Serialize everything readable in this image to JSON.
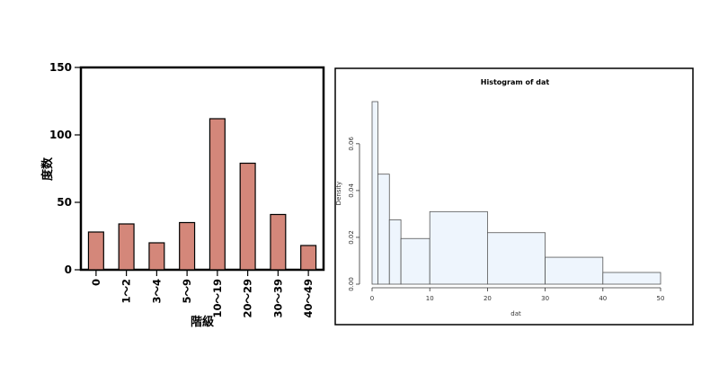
{
  "chart_data": [
    {
      "type": "bar",
      "title": "",
      "xlabel": "階級",
      "ylabel": "度数",
      "categories": [
        "0",
        "1〜2",
        "3〜4",
        "5〜9",
        "10〜19",
        "20〜29",
        "30〜39",
        "40〜49"
      ],
      "values": [
        28,
        34,
        20,
        35,
        112,
        79,
        41,
        18
      ],
      "ylim": [
        0,
        150
      ],
      "yticks": [
        "0",
        "50",
        "100",
        "150"
      ],
      "bar_color": "#d4877a",
      "grid": false,
      "legend": "none"
    },
    {
      "type": "bar",
      "subtype": "histogram",
      "title": "Histogram of dat",
      "xlabel": "dat",
      "ylabel": "Density",
      "bins": [
        {
          "from": 0,
          "to": 1,
          "density": 0.078
        },
        {
          "from": 1,
          "to": 3,
          "density": 0.047
        },
        {
          "from": 3,
          "to": 5,
          "density": 0.0275
        },
        {
          "from": 5,
          "to": 10,
          "density": 0.0195
        },
        {
          "from": 10,
          "to": 20,
          "density": 0.031
        },
        {
          "from": 20,
          "to": 30,
          "density": 0.022
        },
        {
          "from": 30,
          "to": 40,
          "density": 0.0115
        },
        {
          "from": 40,
          "to": 50,
          "density": 0.005
        }
      ],
      "xlim": [
        0,
        50
      ],
      "ylim": [
        0,
        0.078
      ],
      "xticks": [
        "0",
        "10",
        "20",
        "30",
        "40",
        "50"
      ],
      "yticks": [
        "0.00",
        "0.02",
        "0.04",
        "0.06"
      ],
      "bar_color": "#eef5fd",
      "grid": false,
      "legend": "none"
    }
  ]
}
